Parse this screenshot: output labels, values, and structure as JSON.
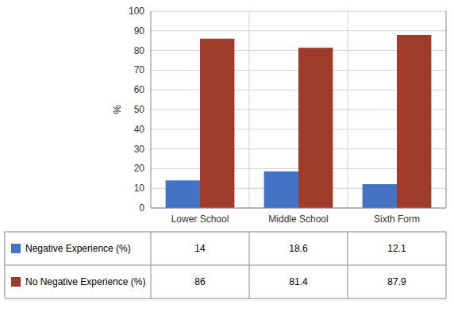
{
  "chart_data": {
    "type": "bar",
    "categories": [
      "Lower School",
      "Middle School",
      "Sixth Form"
    ],
    "series": [
      {
        "name": "Negative Experience (%)",
        "color": "#4472C4",
        "values": [
          14,
          18.6,
          12.1
        ]
      },
      {
        "name": "No Negative Experience (%)",
        "color": "#9E3B2A",
        "values": [
          86,
          81.4,
          87.9
        ]
      }
    ],
    "ylabel": "%",
    "ylim": [
      0,
      100
    ],
    "yticks": [
      0,
      10,
      20,
      30,
      40,
      50,
      60,
      70,
      80,
      90,
      100
    ],
    "grid": true,
    "legend": "bottom",
    "data_labels": true
  }
}
